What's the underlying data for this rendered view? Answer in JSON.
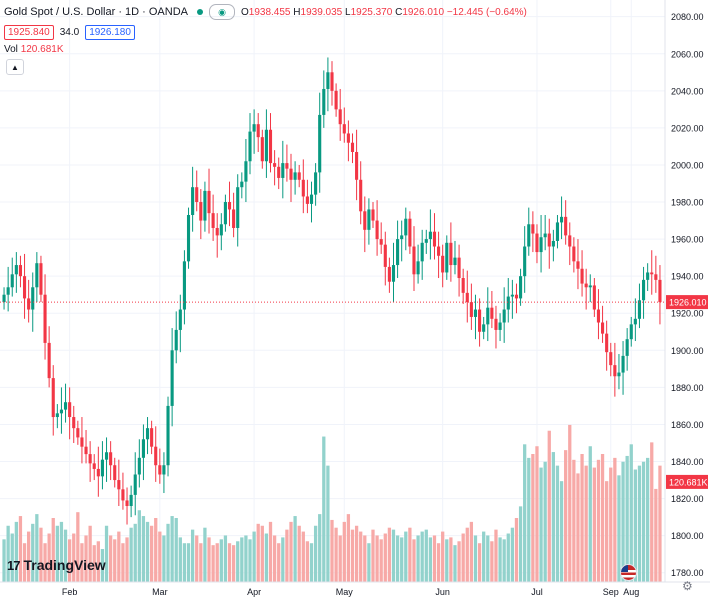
{
  "header": {
    "title": "Gold Spot / U.S. Dollar · 1D · OANDA",
    "open_label": "O",
    "open": "1938.455",
    "high_label": "H",
    "high": "1939.035",
    "low_label": "L",
    "low": "1925.370",
    "close_label": "C",
    "close": "1926.010",
    "change": "−12.445 (−0.64%)",
    "bid": "1925.840",
    "spread": "34.0",
    "ask": "1926.180",
    "eye_icon": "eye-icon",
    "volume_label": "Vol",
    "volume_value": "120.681K"
  },
  "branding": {
    "logo_text": "TradingView"
  },
  "colors": {
    "up": "#089981",
    "down": "#f23645",
    "up_vol": "#92d2cc",
    "down_vol": "#f7a9a7",
    "price_line": "#f23645"
  },
  "chart_data": {
    "type": "candlestick",
    "title": "Gold Spot / U.S. Dollar · 1D · OANDA",
    "y_ticks": [
      1780,
      1800,
      1820,
      1840,
      1860,
      1880,
      1900,
      1920,
      1940,
      1960,
      1980,
      2000,
      2020,
      2040,
      2060,
      2080
    ],
    "ylim": [
      1775,
      2089
    ],
    "x_ticks": [
      "Feb",
      "Mar",
      "Apr",
      "May",
      "Jun",
      "Jul",
      "Aug",
      "Sep"
    ],
    "last_price": 1926.01,
    "last_price_label": "1926.010",
    "last_volume_label": "120.681K",
    "grid": true,
    "closes": [
      1930,
      1934,
      1941,
      1946,
      1940,
      1928,
      1922,
      1934,
      1947,
      1930,
      1904,
      1885,
      1864,
      1866,
      1868,
      1872,
      1864,
      1858,
      1853,
      1848,
      1844,
      1839,
      1836,
      1832,
      1841,
      1845,
      1838,
      1830,
      1825,
      1819,
      1816,
      1822,
      1833,
      1842,
      1852,
      1858,
      1848,
      1838,
      1833,
      1838,
      1870,
      1900,
      1911,
      1922,
      1948,
      1973,
      1988,
      1980,
      1970,
      1986,
      1974,
      1966,
      1962,
      1968,
      1980,
      1976,
      1966,
      1988,
      1991,
      2002,
      2018,
      2022,
      2015,
      2002,
      2019,
      2001,
      1999,
      1993,
      2001,
      1998,
      1992,
      1996,
      1992,
      1983,
      1979,
      1984,
      1996,
      2027,
      2041,
      2050,
      2040,
      2030,
      2022,
      2017,
      2012,
      2007,
      1992,
      1975,
      1965,
      1976,
      1970,
      1960,
      1957,
      1945,
      1937,
      1946,
      1960,
      1962,
      1971,
      1956,
      1941,
      1948,
      1958,
      1960,
      1964,
      1956,
      1951,
      1942,
      1958,
      1946,
      1950,
      1939,
      1931,
      1926,
      1918,
      1922,
      1910,
      1914,
      1923,
      1917,
      1911,
      1915,
      1922,
      1929,
      1930,
      1928,
      1940,
      1956,
      1968,
      1963,
      1953,
      1961,
      1963,
      1956,
      1959,
      1969,
      1972,
      1962,
      1956,
      1948,
      1944,
      1936,
      1934,
      1935,
      1922,
      1915,
      1909,
      1899,
      1892,
      1886,
      1888,
      1897,
      1906,
      1914,
      1917,
      1927,
      1938,
      1942,
      1941,
      1938,
      1926
    ],
    "volume_k": [
      44,
      58,
      50,
      62,
      68,
      40,
      52,
      60,
      70,
      56,
      40,
      50,
      66,
      58,
      62,
      54,
      44,
      50,
      72,
      40,
      48,
      58,
      38,
      42,
      34,
      58,
      48,
      44,
      52,
      40,
      46,
      56,
      60,
      74,
      68,
      62,
      58,
      66,
      52,
      48,
      60,
      68,
      66,
      46,
      40,
      40,
      54,
      48,
      40,
      56,
      46,
      38,
      40,
      44,
      48,
      40,
      38,
      42,
      46,
      48,
      44,
      52,
      60,
      58,
      50,
      62,
      48,
      40,
      46,
      54,
      62,
      68,
      58,
      52,
      42,
      40,
      58,
      70,
      150,
      120,
      64,
      56,
      48,
      62,
      70,
      54,
      58,
      52,
      48,
      40,
      54,
      48,
      44,
      50,
      56,
      54,
      48,
      46,
      52,
      56,
      44,
      48,
      52,
      54,
      46,
      48,
      40,
      52,
      44,
      46,
      38,
      42,
      50,
      56,
      62,
      48,
      40,
      52,
      48,
      42,
      54,
      46,
      44,
      50,
      56,
      66,
      78,
      142,
      128,
      132,
      140,
      118,
      124,
      156,
      134,
      120,
      104,
      136,
      162,
      126,
      112,
      132,
      120,
      140,
      118,
      126,
      132,
      104,
      118,
      128,
      110,
      124,
      130,
      142,
      116,
      120,
      124,
      128,
      144,
      96,
      120
    ]
  }
}
